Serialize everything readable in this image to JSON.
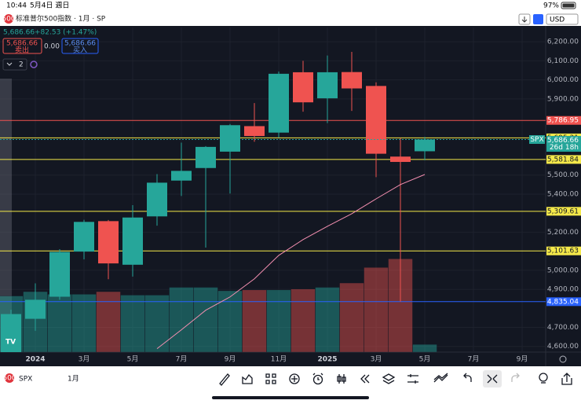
{
  "status_bar": {
    "time": "10:44",
    "date": "5月4日 週日",
    "battery": "97%"
  },
  "header": {
    "logo": "500",
    "title": "标准普尔500指数 · 1月 · SP",
    "currency": "USD",
    "price": "5,686.66",
    "change": "+82.53 (+1.47%)",
    "sell_price": "5,686.66",
    "sell_label": "卖出",
    "spread": "0.00",
    "buy_price": "5,686.66",
    "buy_label": "买入",
    "indicators": "2"
  },
  "chart_data": {
    "type": "candlestick",
    "categories": [
      null,
      "2024",
      null,
      "3月",
      null,
      "5月",
      null,
      "7月",
      null,
      "9月",
      null,
      "11月",
      null,
      "2025",
      null,
      "3月",
      null,
      "5月",
      null,
      "7月",
      null,
      "9月"
    ],
    "open": [
      4559,
      4745,
      4861,
      5098,
      5258,
      5029,
      5283,
      5471,
      5537,
      5623,
      5757,
      5723,
      6040,
      5903,
      6041,
      5968,
      5597,
      5625,
      null,
      null,
      null,
      null
    ],
    "high": [
      4793,
      4931,
      5111,
      5265,
      5264,
      5342,
      5505,
      5670,
      5652,
      5768,
      5878,
      6044,
      6100,
      6128,
      6147,
      5987,
      5695,
      5700,
      null,
      null,
      null,
      null
    ],
    "low": [
      4547,
      4682,
      4845,
      5057,
      4953,
      4967,
      5234,
      5390,
      5119,
      5403,
      5675,
      5696,
      5833,
      5773,
      5837,
      5489,
      4835,
      5578,
      null,
      null,
      null,
      null
    ],
    "close": [
      4770,
      4845,
      5096,
      5254,
      5036,
      5277,
      5460,
      5522,
      5648,
      5762,
      5705,
      6032,
      5882,
      6040,
      5955,
      5612,
      5569,
      5687,
      null,
      null,
      null,
      null
    ],
    "volume": [
      65,
      70,
      67,
      67,
      70,
      66,
      66,
      75,
      75,
      71,
      72,
      72,
      73,
      75,
      80,
      98,
      108,
      9,
      null,
      null,
      null,
      null
    ],
    "volume_lim": [
      0,
      120
    ],
    "ma": [
      null,
      null,
      null,
      null,
      null,
      null,
      4588,
      4687,
      4790,
      4860,
      4955,
      5078,
      5161,
      5231,
      5297,
      5375,
      5450,
      5503,
      null,
      null,
      null,
      null
    ],
    "up_color": "#26a69a",
    "down_color": "#ef5350",
    "ma_color": "#f48fb1",
    "ylim": [
      4570,
      6275
    ],
    "yticks": [
      {
        "value": 4600,
        "label": "4,600.00"
      },
      {
        "value": 4700,
        "label": "4,700.00"
      },
      {
        "value": 4900,
        "label": "4,900.00"
      },
      {
        "value": 5000,
        "label": "5,000.00"
      },
      {
        "value": 5200,
        "label": "5,200.00"
      },
      {
        "value": 5400,
        "label": "5,400.00"
      },
      {
        "value": 5500,
        "label": "5,500.00"
      },
      {
        "value": 5900,
        "label": "5,900.00"
      },
      {
        "value": 6000,
        "label": "6,000.00"
      },
      {
        "value": 6100,
        "label": "6,100.00"
      },
      {
        "value": 6200,
        "label": "6,200.00"
      }
    ],
    "grid": true,
    "price_lines": [
      {
        "value": 5786.95,
        "label": "5,786.95",
        "color": "#f05350"
      },
      {
        "value": 5695.31,
        "label": "5,695.31",
        "color": "#f5e94a"
      },
      {
        "value": 5581.84,
        "label": "5,581.84",
        "color": "#f5e94a"
      },
      {
        "value": 5309.61,
        "label": "5,309.61",
        "color": "#f5e94a"
      },
      {
        "value": 5101.63,
        "label": "5,101.63",
        "color": "#f5e94a"
      },
      {
        "value": 4835.04,
        "label": "4,835.04",
        "color": "#2962ff"
      }
    ],
    "current": {
      "value": 5686.66,
      "label": "5,686.66",
      "tag": "SPX",
      "countdown": "26d 18h"
    }
  },
  "toolbar": {
    "logo": "500",
    "symbol": "SPX",
    "interval": "1月"
  }
}
